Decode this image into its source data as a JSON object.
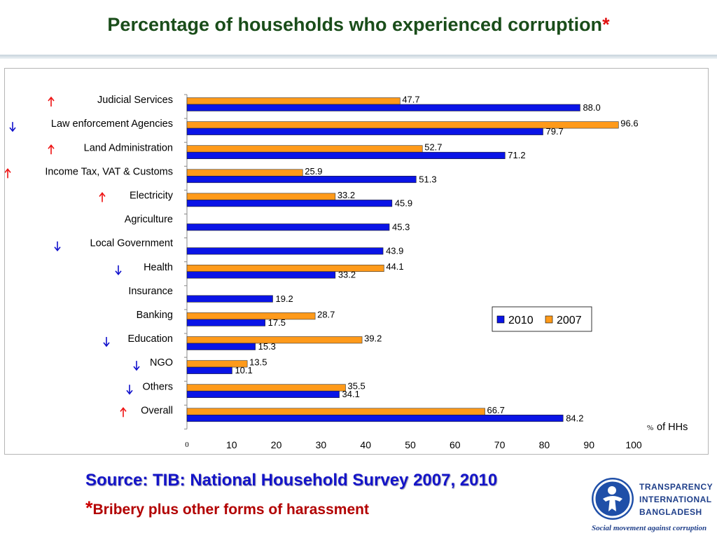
{
  "slide": {
    "title": "Percentage of households who experienced corruption",
    "title_star": "*",
    "source": "Source: TIB: National Household Survey 2007, 2010",
    "footnote_star": "*",
    "footnote": "Bribery plus other forms of harassment"
  },
  "logo": {
    "line1": "TRANSPARENCY",
    "line2": "INTERNATIONAL",
    "line3": "BANGLADESH",
    "tagline": "Social movement against corruption",
    "icon": "person-in-circle-logo"
  },
  "colors": {
    "series_2010": "#0a14e6",
    "series_2007": "#ff9a1a",
    "up_arrow": "#ee1111",
    "down_arrow": "#1010cc"
  },
  "chart_data": {
    "type": "bar",
    "orientation": "horizontal",
    "categories": [
      "Judicial Services",
      "Law enforcement Agencies",
      "Land Administration",
      "Income Tax, VAT & Customs",
      "Electricity",
      "Agriculture",
      "Local Government",
      "Health",
      "Insurance",
      "Banking",
      "Education",
      "NGO",
      "Others",
      "Overall"
    ],
    "series": [
      {
        "name": "2010",
        "values": [
          88.0,
          79.7,
          71.2,
          51.3,
          45.9,
          45.3,
          43.9,
          33.2,
          19.2,
          17.5,
          15.3,
          10.1,
          34.1,
          84.2
        ]
      },
      {
        "name": "2007",
        "values": [
          47.7,
          96.6,
          52.7,
          25.9,
          33.2,
          null,
          null,
          44.1,
          null,
          28.7,
          39.2,
          13.5,
          35.5,
          66.7
        ]
      }
    ],
    "data_labels": {
      "2010": [
        "88.0",
        "79.7",
        "71.2",
        "51.3",
        "45.9",
        "45.3",
        "43.9",
        "33.2",
        "19.2",
        "17.5",
        "15.3",
        "10.1",
        "34.1",
        "84.2"
      ],
      "2007": [
        "47.7",
        "96.6",
        "52.7",
        "25.9",
        "33.2",
        "",
        "",
        "44.1",
        "",
        "28.7",
        "39.2",
        "13.5",
        "35.5",
        "66.7"
      ]
    },
    "trend_arrows": [
      "up",
      "down",
      "up",
      "up",
      "up",
      "",
      "down",
      "down",
      "",
      "",
      "down",
      "down",
      "down",
      "up"
    ],
    "x_ticks": [
      "0",
      "10",
      "20",
      "30",
      "40",
      "50",
      "60",
      "70",
      "80",
      "90",
      "100"
    ],
    "xlim": [
      0,
      100
    ],
    "xlabel_unit": "%",
    "xlabel_text": "of HHs",
    "legend_position": "right",
    "grid": false
  }
}
